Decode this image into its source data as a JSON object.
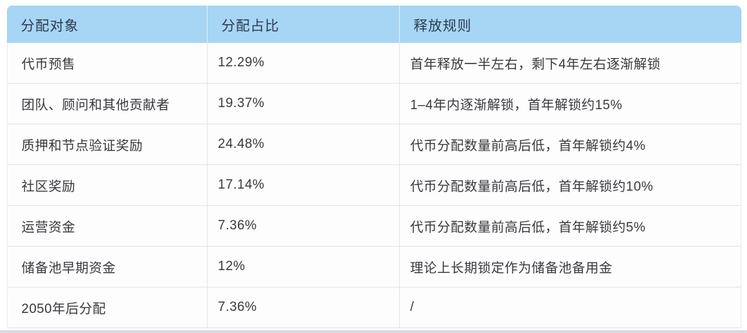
{
  "chart_data": {
    "type": "table",
    "title": "",
    "columns": [
      "分配对象",
      "分配占比",
      "释放规则"
    ],
    "rows": [
      [
        "代币预售",
        "12.29%",
        "首年释放一半左右，剩下4年左右逐渐解锁"
      ],
      [
        "团队、顾问和其他贡献者",
        "19.37%",
        "1–4年内逐渐解锁，首年解锁约15%"
      ],
      [
        "质押和节点验证奖励",
        "24.48%",
        "代币分配数量前高后低，首年解锁约4%"
      ],
      [
        "社区奖励",
        "17.14%",
        "代币分配数量前高后低，首年解锁约10%"
      ],
      [
        "运营资金",
        "7.36%",
        "代币分配数量前高后低，首年解锁约5%"
      ],
      [
        "储备池早期资金",
        "12%",
        "理论上长期锁定作为储备池备用金"
      ],
      [
        "2050年后分配",
        "7.36%",
        "/"
      ]
    ]
  },
  "colors": {
    "header_bg": "#a6d6f3",
    "header_text": "#2c3a52",
    "body_text": "#38393d",
    "border": "#e3e4e8",
    "row_bg": "#fdfdfe"
  }
}
